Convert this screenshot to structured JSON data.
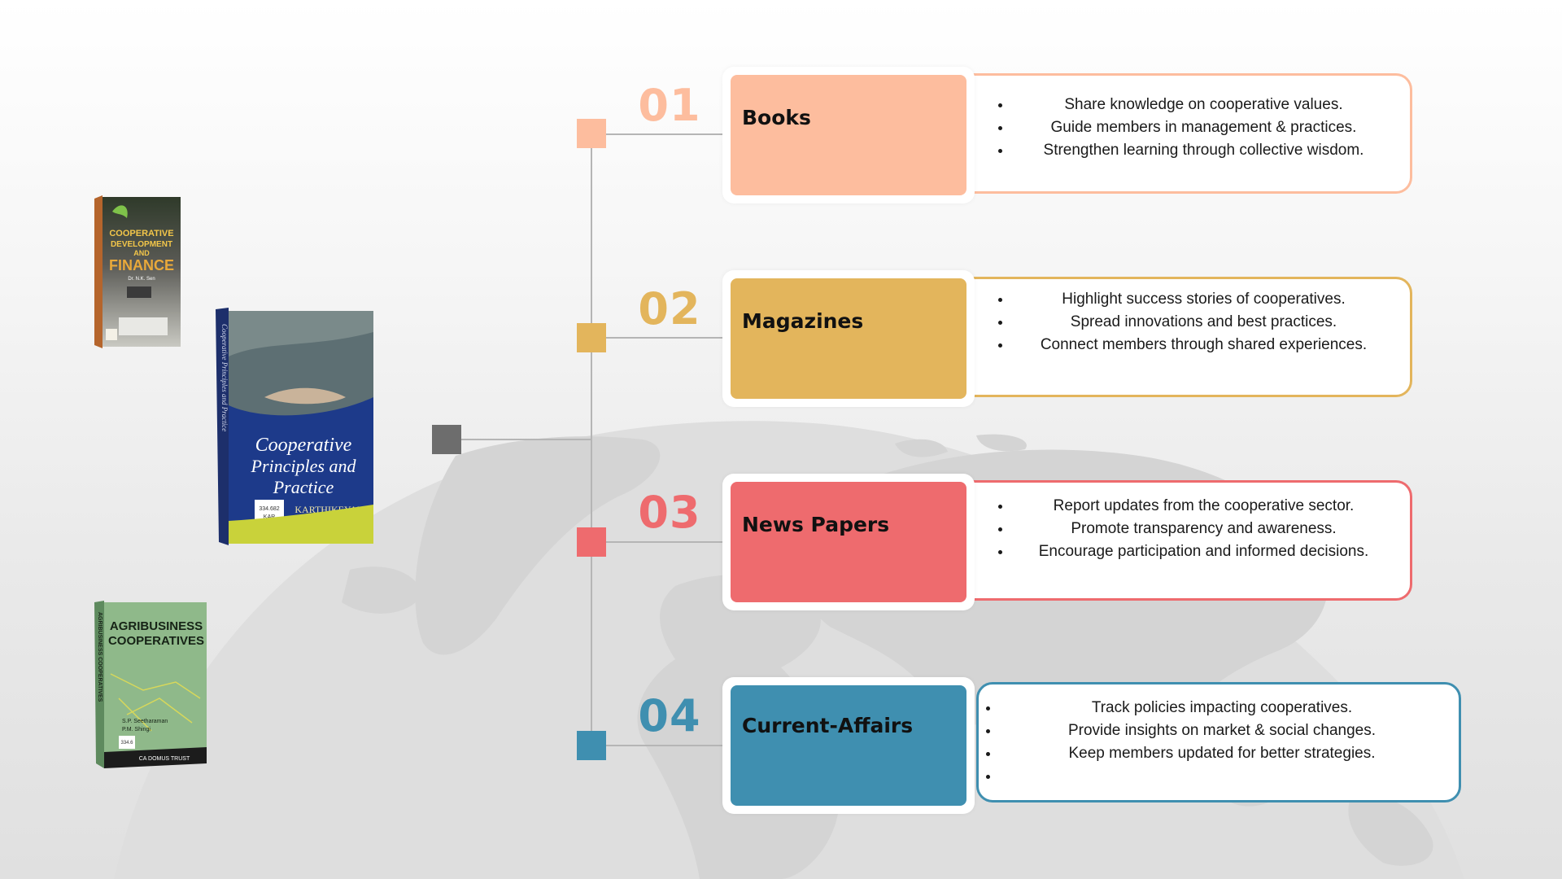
{
  "colors": {
    "books": "#FDBD9E",
    "magazines": "#E3B55C",
    "newspapers": "#EE6B6E",
    "current_affairs": "#3F8FB0",
    "connector": "#6d6d6d",
    "line": "#b5b5b5"
  },
  "items": [
    {
      "number": "01",
      "title": "Books",
      "color": "#FDBD9E",
      "points": [
        "Share knowledge on cooperative values.",
        "Guide members in management & practices.",
        "Strengthen learning through collective wisdom."
      ]
    },
    {
      "number": "02",
      "title": "Magazines",
      "color": "#E3B55C",
      "points": [
        "Highlight success stories of cooperatives.",
        "Spread innovations and best practices.",
        "Connect members through shared experiences."
      ]
    },
    {
      "number": "03",
      "title": "News Papers",
      "color": "#EE6B6E",
      "points": [
        "Report updates from the cooperative sector.",
        "Promote transparency and awareness.",
        "Encourage participation and informed decisions."
      ]
    },
    {
      "number": "04",
      "title": "Current-Affairs",
      "color": "#3F8FB0",
      "points": [
        "Track policies impacting cooperatives.",
        "Provide insights on market & social changes.",
        "Keep members updated for better strategies.",
        ""
      ]
    }
  ],
  "books": [
    {
      "title_line1": "COOPERATIVE",
      "title_line2": "DEVELOPMENT",
      "title_line3": "AND",
      "title_line4": "FINANCE",
      "author": "Dr. N.K. Sen"
    },
    {
      "title_line1": "Cooperative",
      "title_line2": "Principles and",
      "title_line3": "Practice",
      "author": "KARTHIKEYAN",
      "spine": "Cooperative Principles and Practice",
      "sticker_line1": "334.682",
      "sticker_line2": "KAR"
    },
    {
      "title_line1": "AGRIBUSINESS",
      "title_line2": "COOPERATIVES",
      "author1": "S.P. Seetharaman",
      "author2": "P.M. Shingi",
      "publisher": "CA DOMUS TRUST",
      "spine": "AGRIBUSINESS COOPERATIVES",
      "sticker": "334.6"
    }
  ]
}
